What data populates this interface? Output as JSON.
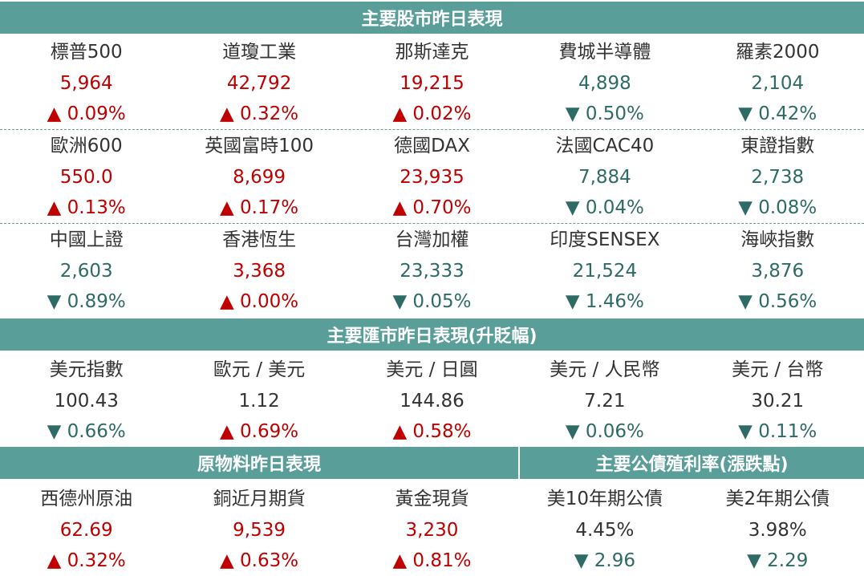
{
  "stocks": {
    "title": "主要股市昨日表現",
    "rows": [
      [
        {
          "name": "標普500",
          "value": "5,964",
          "change": "▲ 0.09%",
          "dir": "up"
        },
        {
          "name": "道瓊工業",
          "value": "42,792",
          "change": "▲ 0.32%",
          "dir": "up"
        },
        {
          "name": "那斯達克",
          "value": "19,215",
          "change": "▲ 0.02%",
          "dir": "up"
        },
        {
          "name": "費城半導體",
          "value": "4,898",
          "change": "▼ 0.50%",
          "dir": "dn"
        },
        {
          "name": "羅素2000",
          "value": "2,104",
          "change": "▼ 0.42%",
          "dir": "dn"
        }
      ],
      [
        {
          "name": "歐洲600",
          "value": "550.0",
          "change": "▲ 0.13%",
          "dir": "up"
        },
        {
          "name": "英國富時100",
          "value": "8,699",
          "change": "▲ 0.17%",
          "dir": "up"
        },
        {
          "name": "德國DAX",
          "value": "23,935",
          "change": "▲ 0.70%",
          "dir": "up"
        },
        {
          "name": "法國CAC40",
          "value": "7,884",
          "change": "▼ 0.04%",
          "dir": "dn"
        },
        {
          "name": "東證指數",
          "value": "2,738",
          "change": "▼ 0.08%",
          "dir": "dn"
        }
      ],
      [
        {
          "name": "中國上證",
          "value": "2,603",
          "change": "▼ 0.89%",
          "dir": "dn"
        },
        {
          "name": "香港恆生",
          "value": "3,368",
          "change": "▲ 0.00%",
          "dir": "up"
        },
        {
          "name": "台灣加權",
          "value": "23,333",
          "change": "▼ 0.05%",
          "dir": "dn"
        },
        {
          "name": "印度SENSEX",
          "value": "21,524",
          "change": "▼ 1.46%",
          "dir": "dn"
        },
        {
          "name": "海峽指數",
          "value": "3,876",
          "change": "▼ 0.56%",
          "dir": "dn"
        }
      ]
    ]
  },
  "fx": {
    "title": "主要匯市昨日表現(升貶幅)",
    "items": [
      {
        "name": "美元指數",
        "value": "100.43",
        "change": "▼ 0.66%",
        "dir": "dn"
      },
      {
        "name": "歐元 / 美元",
        "value": "1.12",
        "change": "▲ 0.69%",
        "dir": "up"
      },
      {
        "name": "美元 / 日圓",
        "value": "144.86",
        "change": "▲ 0.58%",
        "dir": "up"
      },
      {
        "name": "美元 / 人民幣",
        "value": "7.21",
        "change": "▼ 0.06%",
        "dir": "dn"
      },
      {
        "name": "美元 / 台幣",
        "value": "30.21",
        "change": "▼ 0.11%",
        "dir": "dn"
      }
    ]
  },
  "commodities": {
    "title": "原物料昨日表現",
    "items": [
      {
        "name": "西德州原油",
        "value": "62.69",
        "change": "▲ 0.32%",
        "dir": "up"
      },
      {
        "name": "銅近月期貨",
        "value": "9,539",
        "change": "▲ 0.63%",
        "dir": "up"
      },
      {
        "name": "黃金現貨",
        "value": "3,230",
        "change": "▲ 0.81%",
        "dir": "up"
      }
    ]
  },
  "bonds": {
    "title": "主要公債殖利率(漲跌點)",
    "items": [
      {
        "name": "美10年期公債",
        "value": "4.45%",
        "change": "▼ 2.96",
        "dir": "dn"
      },
      {
        "name": "美2年期公債",
        "value": "3.98%",
        "change": "▼ 2.29",
        "dir": "dn"
      }
    ]
  },
  "colors": {
    "header_bg": "#5a9e99",
    "up": "#c00000",
    "down": "#2e6b66",
    "neutral": "#333333"
  }
}
